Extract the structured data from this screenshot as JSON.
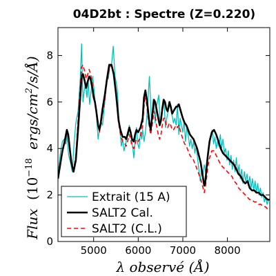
{
  "chart_data": {
    "type": "line",
    "title": "04D2bt : Spectre (Z=0.220)",
    "xlabel": "λ observé (Å)",
    "ylabel": "Flux (10^-18 ergs/cm^2/s/Å)",
    "ylabel_parts": {
      "flux": "Flux",
      "paren_open": "(10",
      "exponent": "−18",
      "unit_a": "ergs/cm",
      "sq": "2",
      "unit_b": "/s/Å)"
    },
    "xlim": [
      4200,
      8950
    ],
    "ylim": [
      0,
      9.2
    ],
    "xticks": [
      5000,
      6000,
      7000,
      8000
    ],
    "yticks": [
      0,
      2,
      4,
      6,
      8
    ],
    "grid": false,
    "legend_position": "bottom-left",
    "series": [
      {
        "name": "Extrait (15 A)",
        "color": "#00bfbf",
        "style": "solid",
        "x": [
          4200,
          4260,
          4300,
          4340,
          4380,
          4400,
          4440,
          4480,
          4520,
          4560,
          4600,
          4650,
          4700,
          4730,
          4760,
          4790,
          4820,
          4850,
          4880,
          4910,
          4940,
          4980,
          5020,
          5060,
          5100,
          5130,
          5160,
          5200,
          5230,
          5260,
          5300,
          5330,
          5360,
          5400,
          5440,
          5480,
          5520,
          5540,
          5560,
          5580,
          5600,
          5620,
          5650,
          5680,
          5720,
          5750,
          5780,
          5800,
          5830,
          5850,
          5880,
          5900,
          5930,
          5960,
          5990,
          6020,
          6050,
          6080,
          6100,
          6130,
          6160,
          6190,
          6220,
          6250,
          6280,
          6300,
          6320,
          6350,
          6380,
          6400,
          6430,
          6460,
          6490,
          6520,
          6550,
          6580,
          6610,
          6640,
          6670,
          6700,
          6730,
          6760,
          6790,
          6820,
          6850,
          6880,
          6910,
          6940,
          6970,
          7000,
          7030,
          7060,
          7090,
          7120,
          7150,
          7180,
          7210,
          7240,
          7270,
          7300,
          7330,
          7360,
          7390,
          7420,
          7450,
          7480,
          7510,
          7540,
          7570,
          7600,
          7630,
          7660,
          7690,
          7720,
          7750,
          7780,
          7810,
          7840,
          7870,
          7900,
          7930,
          7960,
          7990,
          8020,
          8050,
          8080,
          8110,
          8140,
          8170,
          8200,
          8230,
          8260,
          8290,
          8320,
          8350,
          8380,
          8410,
          8440,
          8470,
          8500,
          8530,
          8560,
          8590,
          8620,
          8650,
          8680,
          8710,
          8740,
          8770,
          8800,
          8830,
          8860,
          8890,
          8920
        ],
        "y": [
          2.9,
          3.9,
          4.3,
          4.4,
          4.2,
          4.6,
          3.7,
          3.4,
          3.0,
          4.2,
          5.1,
          5.6,
          7.0,
          8.5,
          6.0,
          6.5,
          6.8,
          6.2,
          6.9,
          5.9,
          6.4,
          7.1,
          6.3,
          5.5,
          4.4,
          4.8,
          5.2,
          5.0,
          5.6,
          6.2,
          7.1,
          7.0,
          7.5,
          7.6,
          8.4,
          7.1,
          6.7,
          6.3,
          5.4,
          5.0,
          4.6,
          4.1,
          4.4,
          3.9,
          4.2,
          4.6,
          4.6,
          5.0,
          4.7,
          4.4,
          4.0,
          3.6,
          4.3,
          4.9,
          4.2,
          4.0,
          4.7,
          4.4,
          4.8,
          4.3,
          4.7,
          5.3,
          6.2,
          7.1,
          5.9,
          4.9,
          5.6,
          6.1,
          5.1,
          5.7,
          6.0,
          6.3,
          5.0,
          5.5,
          5.8,
          6.0,
          4.9,
          5.3,
          5.6,
          5.9,
          5.7,
          5.4,
          5.1,
          5.3,
          5.0,
          5.9,
          4.6,
          5.3,
          5.0,
          4.7,
          5.2,
          4.3,
          4.9,
          4.6,
          4.1,
          4.4,
          4.0,
          4.3,
          3.8,
          4.1,
          3.6,
          3.1,
          2.6,
          3.1,
          2.9,
          3.3,
          3.0,
          3.5,
          4.0,
          4.4,
          4.6,
          4.8,
          4.2,
          4.5,
          4.0,
          4.3,
          4.1,
          4.6,
          4.0,
          4.4,
          3.8,
          4.0,
          3.5,
          3.9,
          3.3,
          3.7,
          3.1,
          3.5,
          3.0,
          3.6,
          2.9,
          3.3,
          2.7,
          3.1,
          2.5,
          3.0,
          2.6,
          2.9,
          2.4,
          2.8,
          2.3,
          2.7,
          2.2,
          2.6,
          2.1,
          2.5,
          2.0,
          2.3,
          1.9,
          2.1,
          1.7,
          1.9,
          1.6,
          1.8
        ]
      },
      {
        "name": "SALT2 Cal.",
        "color": "#000000",
        "style": "solid",
        "x": [
          4200,
          4250,
          4300,
          4350,
          4400,
          4430,
          4470,
          4500,
          4550,
          4600,
          4650,
          4700,
          4730,
          4760,
          4800,
          4830,
          4870,
          4900,
          4930,
          4970,
          5000,
          5030,
          5060,
          5100,
          5130,
          5160,
          5200,
          5250,
          5300,
          5350,
          5400,
          5450,
          5500,
          5530,
          5560,
          5600,
          5650,
          5700,
          5730,
          5760,
          5800,
          5830,
          5860,
          5900,
          5930,
          5960,
          6000,
          6050,
          6100,
          6130,
          6160,
          6200,
          6250,
          6280,
          6320,
          6350,
          6380,
          6410,
          6450,
          6480,
          6510,
          6540,
          6570,
          6600,
          6630,
          6660,
          6700,
          6730,
          6760,
          6790,
          6820,
          6850,
          6880,
          6910,
          6940,
          6970,
          7000,
          7040,
          7080,
          7120,
          7160,
          7200,
          7240,
          7280,
          7320,
          7360,
          7400,
          7440,
          7480,
          7500,
          7530,
          7560,
          7600,
          7650,
          7700,
          7750,
          7800,
          7850,
          7900,
          7950,
          8000,
          8050,
          8100,
          8150,
          8200,
          8250,
          8300,
          8350,
          8400,
          8450,
          8500,
          8550,
          8600,
          8650,
          8700,
          8750,
          8800,
          8850,
          8900,
          8940
        ],
        "y": [
          2.7,
          3.3,
          3.9,
          4.3,
          4.8,
          4.6,
          3.9,
          3.4,
          3.0,
          3.5,
          4.8,
          6.2,
          7.1,
          7.2,
          6.9,
          6.6,
          6.9,
          7.1,
          7.0,
          6.6,
          6.2,
          6.0,
          5.6,
          5.0,
          4.8,
          5.1,
          5.7,
          6.3,
          7.0,
          7.6,
          7.6,
          7.2,
          6.4,
          5.8,
          5.2,
          4.8,
          4.5,
          4.5,
          4.4,
          4.6,
          4.9,
          4.7,
          4.4,
          4.3,
          4.6,
          4.8,
          4.7,
          4.9,
          5.3,
          6.2,
          6.5,
          6.0,
          5.1,
          4.8,
          5.5,
          6.1,
          6.0,
          5.7,
          5.3,
          5.0,
          5.2,
          5.7,
          6.1,
          6.0,
          5.7,
          5.6,
          6.0,
          5.8,
          5.5,
          5.6,
          5.7,
          5.8,
          5.8,
          5.9,
          5.7,
          5.5,
          5.3,
          5.1,
          5.0,
          4.8,
          4.6,
          4.5,
          4.4,
          4.2,
          4.0,
          3.7,
          3.4,
          2.9,
          2.4,
          2.5,
          3.1,
          3.7,
          4.3,
          4.7,
          4.8,
          4.6,
          4.3,
          4.0,
          3.8,
          3.7,
          3.6,
          3.5,
          3.4,
          3.3,
          3.1,
          2.9,
          2.8,
          2.6,
          2.5,
          2.6,
          2.3,
          2.2,
          2.2,
          2.1,
          2.1,
          2.0,
          2.0,
          1.9,
          1.8,
          1.8
        ]
      },
      {
        "name": "SALT2 (C.L.)",
        "color": "#ff0000",
        "style": "dashed",
        "x": [
          4200,
          4250,
          4300,
          4350,
          4400,
          4430,
          4470,
          4500,
          4550,
          4600,
          4650,
          4700,
          4730,
          4760,
          4800,
          4830,
          4870,
          4900,
          4930,
          4970,
          5000,
          5030,
          5060,
          5100,
          5130,
          5160,
          5200,
          5250,
          5300,
          5350,
          5400,
          5450,
          5500,
          5530,
          5560,
          5600,
          5650,
          5700,
          5730,
          5760,
          5800,
          5830,
          5860,
          5900,
          5930,
          5960,
          6000,
          6050,
          6100,
          6130,
          6160,
          6200,
          6250,
          6280,
          6320,
          6350,
          6380,
          6410,
          6450,
          6480,
          6510,
          6540,
          6570,
          6600,
          6630,
          6660,
          6700,
          6730,
          6760,
          6790,
          6820,
          6850,
          6880,
          6910,
          6940,
          6970,
          7000,
          7040,
          7080,
          7120,
          7160,
          7200,
          7240,
          7280,
          7320,
          7360,
          7400,
          7440,
          7480,
          7500,
          7530,
          7560,
          7600,
          7650,
          7700,
          7750,
          7800,
          7850,
          7900,
          7950,
          8000,
          8050,
          8100,
          8150,
          8200,
          8250,
          8300,
          8350,
          8400,
          8450,
          8500,
          8550,
          8600,
          8650,
          8700,
          8750,
          8800,
          8850,
          8900,
          8940
        ],
        "y": [
          2.7,
          3.3,
          3.9,
          4.2,
          4.7,
          4.5,
          3.8,
          3.4,
          3.1,
          3.7,
          5.2,
          6.7,
          7.5,
          7.6,
          7.3,
          7.0,
          7.2,
          7.4,
          7.2,
          6.8,
          6.3,
          6.0,
          5.6,
          5.0,
          4.7,
          5.0,
          5.5,
          6.1,
          6.9,
          7.4,
          7.6,
          7.2,
          6.3,
          5.7,
          5.1,
          4.6,
          4.3,
          4.2,
          4.1,
          4.3,
          4.6,
          4.4,
          4.1,
          4.0,
          4.2,
          4.4,
          4.3,
          4.5,
          5.0,
          5.8,
          6.3,
          5.7,
          4.9,
          4.6,
          5.1,
          5.6,
          5.4,
          5.0,
          4.6,
          4.4,
          4.6,
          5.0,
          5.3,
          5.3,
          5.0,
          4.9,
          5.1,
          5.0,
          4.8,
          4.8,
          4.9,
          5.0,
          4.9,
          5.0,
          4.8,
          4.6,
          4.4,
          4.2,
          4.1,
          3.9,
          3.7,
          3.6,
          3.5,
          3.3,
          3.1,
          2.9,
          2.7,
          2.4,
          2.1,
          2.3,
          2.7,
          3.2,
          3.6,
          3.9,
          3.9,
          3.7,
          3.5,
          3.3,
          3.2,
          3.1,
          3.0,
          2.9,
          2.8,
          2.6,
          2.5,
          2.3,
          2.2,
          2.1,
          2.0,
          1.9,
          1.8,
          1.8,
          1.7,
          1.7,
          1.6,
          1.6,
          1.5,
          1.5,
          1.4,
          1.4
        ]
      }
    ]
  }
}
